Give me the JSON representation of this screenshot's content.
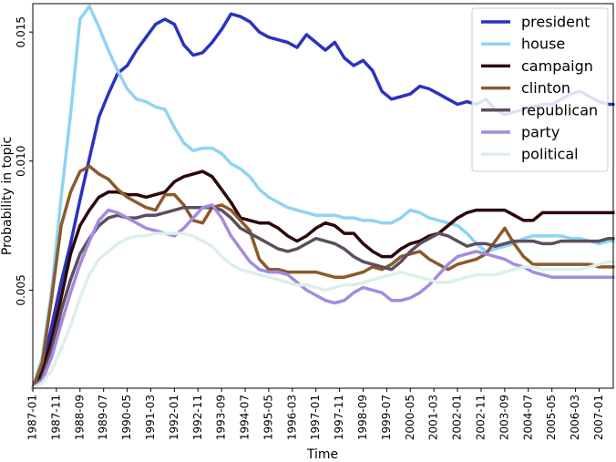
{
  "chart_data": {
    "type": "line",
    "xlabel": "Time",
    "ylabel": "Probability in topic",
    "ylim": [
      0.0012,
      0.0161
    ],
    "grid": false,
    "legend_placement": "top-right",
    "x_ticks": [
      "1987-01",
      "1987-11",
      "1988-09",
      "1989-07",
      "1990-05",
      "1991-03",
      "1992-01",
      "1992-11",
      "1993-09",
      "1994-07",
      "1995-05",
      "1996-03",
      "1997-01",
      "1997-11",
      "1998-09",
      "1999-07",
      "2000-05",
      "2001-03",
      "2002-01",
      "2002-11",
      "2003-09",
      "2004-07",
      "2005-05",
      "2006-03",
      "2007-01"
    ],
    "y_ticks": [
      "0.005",
      "0.010",
      "0.015"
    ],
    "x": [
      "1987-01",
      "1987-05",
      "1987-09",
      "1988-01",
      "1988-05",
      "1988-09",
      "1989-01",
      "1989-05",
      "1989-09",
      "1990-01",
      "1990-05",
      "1990-09",
      "1991-01",
      "1991-05",
      "1991-09",
      "1992-01",
      "1992-05",
      "1992-09",
      "1993-01",
      "1993-05",
      "1993-09",
      "1994-01",
      "1994-05",
      "1994-09",
      "1995-01",
      "1995-05",
      "1995-09",
      "1996-01",
      "1996-05",
      "1996-09",
      "1997-01",
      "1997-05",
      "1997-09",
      "1998-01",
      "1998-05",
      "1998-09",
      "1999-01",
      "1999-05",
      "1999-09",
      "2000-01",
      "2000-05",
      "2000-09",
      "2001-01",
      "2001-05",
      "2001-09",
      "2002-01",
      "2002-05",
      "2002-09",
      "2003-01",
      "2003-05",
      "2003-09",
      "2004-01",
      "2004-05",
      "2004-09",
      "2005-01",
      "2005-05",
      "2005-09",
      "2006-01",
      "2006-05",
      "2006-09",
      "2007-01",
      "2007-05",
      "2007-07"
    ],
    "series": [
      {
        "name": "president",
        "color": "#2a32c0",
        "values": [
          0.0012,
          0.002,
          0.0036,
          0.0053,
          0.0068,
          0.0085,
          0.0101,
          0.0117,
          0.0126,
          0.0134,
          0.0137,
          0.0143,
          0.0148,
          0.0153,
          0.0155,
          0.0153,
          0.0145,
          0.0141,
          0.0142,
          0.0146,
          0.0151,
          0.0157,
          0.0156,
          0.0154,
          0.015,
          0.0148,
          0.0147,
          0.0146,
          0.0144,
          0.0149,
          0.0146,
          0.0143,
          0.0146,
          0.014,
          0.0137,
          0.0139,
          0.0135,
          0.0127,
          0.0124,
          0.0125,
          0.0126,
          0.0129,
          0.0128,
          0.0126,
          0.0124,
          0.0122,
          0.0123,
          0.0122,
          0.0124,
          0.012,
          0.0118,
          0.0119,
          0.012,
          0.0121,
          0.0122,
          0.0122,
          0.0124,
          0.0126,
          0.0127,
          0.0125,
          0.0123,
          0.0122,
          0.0122
        ]
      },
      {
        "name": "house",
        "color": "#8fd3f5",
        "values": [
          0.0012,
          0.0024,
          0.005,
          0.0086,
          0.0118,
          0.0155,
          0.016,
          0.0152,
          0.0143,
          0.0135,
          0.0128,
          0.0124,
          0.0123,
          0.0121,
          0.012,
          0.0113,
          0.0107,
          0.0104,
          0.0105,
          0.0105,
          0.0103,
          0.0099,
          0.0097,
          0.0094,
          0.0089,
          0.0086,
          0.0084,
          0.0082,
          0.0081,
          0.008,
          0.0079,
          0.0079,
          0.0079,
          0.0078,
          0.0078,
          0.0077,
          0.0077,
          0.0076,
          0.0076,
          0.0078,
          0.0081,
          0.008,
          0.0078,
          0.0077,
          0.0076,
          0.0075,
          0.0072,
          0.0068,
          0.0065,
          0.0066,
          0.0067,
          0.0068,
          0.007,
          0.0071,
          0.0071,
          0.0071,
          0.0071,
          0.007,
          0.007,
          0.0069,
          0.0068,
          0.0069,
          0.0069
        ]
      },
      {
        "name": "campaign",
        "color": "#2d0608",
        "values": [
          0.0012,
          0.0018,
          0.0031,
          0.0047,
          0.0064,
          0.0075,
          0.0081,
          0.0086,
          0.0088,
          0.0088,
          0.0087,
          0.0087,
          0.0086,
          0.0087,
          0.0088,
          0.0092,
          0.0094,
          0.0095,
          0.0096,
          0.0094,
          0.0089,
          0.0084,
          0.0078,
          0.0077,
          0.0076,
          0.0076,
          0.0074,
          0.0071,
          0.0069,
          0.0071,
          0.0074,
          0.0076,
          0.0075,
          0.0072,
          0.0072,
          0.0068,
          0.0065,
          0.0063,
          0.0063,
          0.0066,
          0.0068,
          0.0069,
          0.0071,
          0.0072,
          0.0075,
          0.0078,
          0.008,
          0.0081,
          0.0081,
          0.0081,
          0.0081,
          0.0079,
          0.0077,
          0.0077,
          0.008,
          0.008,
          0.008,
          0.008,
          0.008,
          0.008,
          0.008,
          0.008,
          0.008
        ]
      },
      {
        "name": "clinton",
        "color": "#8b5a2b",
        "values": [
          0.0012,
          0.0022,
          0.0047,
          0.0075,
          0.0088,
          0.0096,
          0.0098,
          0.0095,
          0.0093,
          0.0089,
          0.0086,
          0.0084,
          0.0082,
          0.0081,
          0.0087,
          0.0087,
          0.0083,
          0.0077,
          0.0076,
          0.0082,
          0.0083,
          0.0081,
          0.0077,
          0.0073,
          0.0062,
          0.0058,
          0.0058,
          0.0057,
          0.0057,
          0.0057,
          0.0057,
          0.0056,
          0.0055,
          0.0055,
          0.0056,
          0.0057,
          0.0059,
          0.0058,
          0.006,
          0.0063,
          0.0064,
          0.0065,
          0.0062,
          0.006,
          0.0058,
          0.006,
          0.0061,
          0.0062,
          0.0064,
          0.0069,
          0.0074,
          0.0068,
          0.0063,
          0.006,
          0.006,
          0.006,
          0.006,
          0.006,
          0.006,
          0.006,
          0.0059,
          0.0059,
          0.0059
        ]
      },
      {
        "name": "republican",
        "color": "#5d4e5f",
        "values": [
          0.0012,
          0.0016,
          0.0027,
          0.0042,
          0.0054,
          0.0064,
          0.007,
          0.0075,
          0.0078,
          0.0079,
          0.0078,
          0.0078,
          0.0079,
          0.0079,
          0.008,
          0.0081,
          0.0082,
          0.0082,
          0.0082,
          0.0082,
          0.0081,
          0.0078,
          0.0074,
          0.0072,
          0.007,
          0.0068,
          0.0066,
          0.0065,
          0.0066,
          0.0068,
          0.007,
          0.0069,
          0.0068,
          0.0066,
          0.0063,
          0.0061,
          0.006,
          0.0059,
          0.0058,
          0.0061,
          0.0065,
          0.0068,
          0.007,
          0.0072,
          0.0071,
          0.0069,
          0.0067,
          0.0068,
          0.0068,
          0.0067,
          0.0068,
          0.0069,
          0.0069,
          0.0069,
          0.0068,
          0.0068,
          0.0069,
          0.0069,
          0.0069,
          0.0069,
          0.0069,
          0.007,
          0.007
        ]
      },
      {
        "name": "party",
        "color": "#a48be0",
        "values": [
          0.0012,
          0.0015,
          0.0024,
          0.0037,
          0.0049,
          0.006,
          0.0069,
          0.0077,
          0.0081,
          0.008,
          0.0078,
          0.0076,
          0.0074,
          0.0073,
          0.0072,
          0.0071,
          0.0074,
          0.0078,
          0.0082,
          0.0083,
          0.0078,
          0.0071,
          0.0066,
          0.0061,
          0.0058,
          0.0057,
          0.0057,
          0.0056,
          0.0053,
          0.005,
          0.0048,
          0.0046,
          0.0045,
          0.0046,
          0.0049,
          0.0051,
          0.005,
          0.0049,
          0.0046,
          0.0046,
          0.0047,
          0.0049,
          0.0052,
          0.0056,
          0.006,
          0.0063,
          0.0064,
          0.0065,
          0.0064,
          0.0063,
          0.0062,
          0.006,
          0.0059,
          0.0057,
          0.0056,
          0.0055,
          0.0055,
          0.0055,
          0.0055,
          0.0055,
          0.0055,
          0.0055,
          0.0055
        ]
      },
      {
        "name": "political",
        "color": "#dcefe9",
        "values": [
          0.0012,
          0.0014,
          0.0019,
          0.0027,
          0.0036,
          0.0047,
          0.0056,
          0.0062,
          0.0065,
          0.0068,
          0.007,
          0.0071,
          0.0071,
          0.0072,
          0.0072,
          0.0072,
          0.0072,
          0.0071,
          0.0069,
          0.0067,
          0.0063,
          0.006,
          0.0058,
          0.0057,
          0.0056,
          0.0055,
          0.0054,
          0.0053,
          0.0052,
          0.0052,
          0.0051,
          0.005,
          0.0051,
          0.0052,
          0.0052,
          0.0053,
          0.0054,
          0.0055,
          0.0056,
          0.0057,
          0.0056,
          0.0055,
          0.0054,
          0.0053,
          0.0053,
          0.0054,
          0.0055,
          0.0056,
          0.0056,
          0.0056,
          0.0057,
          0.0058,
          0.0059,
          0.0059,
          0.0058,
          0.0058,
          0.0058,
          0.0058,
          0.0058,
          0.0059,
          0.006,
          0.0061,
          0.0061
        ]
      }
    ]
  }
}
